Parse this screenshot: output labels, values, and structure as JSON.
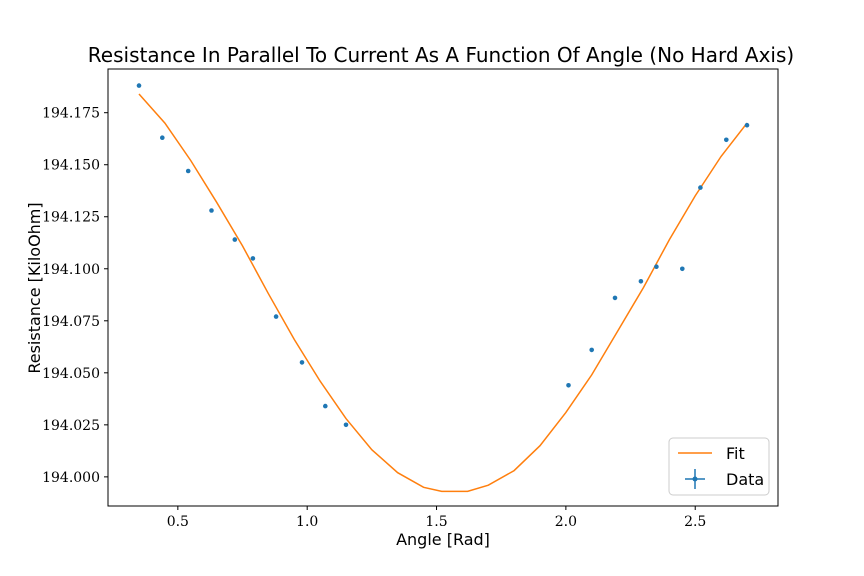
{
  "chart_data": {
    "type": "scatter",
    "title": "Resistance In Parallel To Current As A Function Of Angle (No Hard Axis)",
    "xlabel": "Angle [Rad]",
    "ylabel": "Resistance [KiloOhm]",
    "xlim": [
      0.23,
      2.82
    ],
    "ylim": [
      193.986,
      194.196
    ],
    "xticks": [
      0.5,
      1.0,
      1.5,
      2.0,
      2.5
    ],
    "xtick_labels": [
      "0.5",
      "1.0",
      "1.5",
      "2.0",
      "2.5"
    ],
    "yticks": [
      194.0,
      194.025,
      194.05,
      194.075,
      194.1,
      194.125,
      194.15,
      194.175
    ],
    "ytick_labels": [
      "194.000",
      "194.025",
      "194.050",
      "194.075",
      "194.100",
      "194.125",
      "194.150",
      "194.175"
    ],
    "grid": false,
    "legend_position": "bottom-right",
    "series": [
      {
        "name": "Fit",
        "kind": "line",
        "color": "#ff7f0e",
        "x": [
          0.35,
          0.45,
          0.55,
          0.65,
          0.75,
          0.85,
          0.95,
          1.05,
          1.15,
          1.25,
          1.35,
          1.45,
          1.52,
          1.57,
          1.62,
          1.7,
          1.8,
          1.9,
          2.0,
          2.1,
          2.2,
          2.3,
          2.4,
          2.5,
          2.6,
          2.7
        ],
        "y": [
          194.184,
          194.17,
          194.152,
          194.132,
          194.111,
          194.088,
          194.066,
          194.046,
          194.028,
          194.013,
          194.002,
          193.995,
          193.993,
          193.993,
          193.993,
          193.996,
          194.003,
          194.015,
          194.031,
          194.049,
          194.07,
          194.091,
          194.114,
          194.135,
          194.154,
          194.17
        ]
      },
      {
        "name": "Data",
        "kind": "scatter",
        "color": "#1f77b4",
        "x": [
          0.35,
          0.44,
          0.54,
          0.63,
          0.72,
          0.79,
          0.88,
          0.98,
          1.07,
          1.15,
          2.01,
          2.1,
          2.19,
          2.29,
          2.35,
          2.45,
          2.52,
          2.62,
          2.7
        ],
        "y": [
          194.188,
          194.163,
          194.147,
          194.128,
          194.114,
          194.105,
          194.077,
          194.055,
          194.034,
          194.025,
          194.044,
          194.061,
          194.086,
          194.094,
          194.101,
          194.1,
          194.139,
          194.162,
          194.169
        ]
      }
    ]
  }
}
